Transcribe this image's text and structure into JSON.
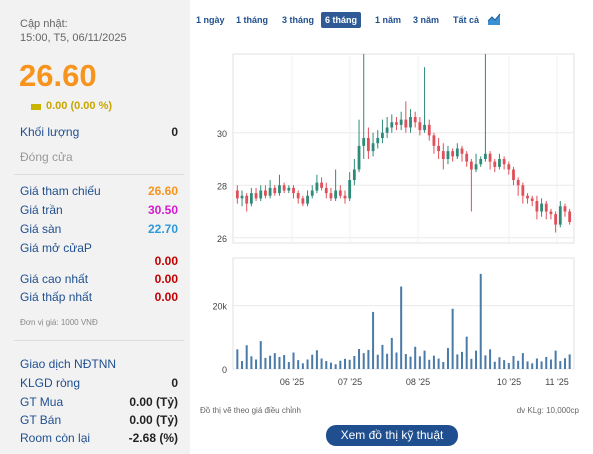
{
  "update": {
    "label": "Cập nhật:",
    "time": "15:00, T5, 06/11/2025"
  },
  "price": "26.60",
  "change": "0.00 (0.00 %)",
  "volume": {
    "label": "Khối lượng",
    "value": "0"
  },
  "status": "Đóng cửa",
  "prices": [
    {
      "label": "Giá tham chiếu",
      "value": "26.60",
      "color": "#f7941d"
    },
    {
      "label": "Giá trần",
      "value": "30.50",
      "color": "#d41ad0"
    },
    {
      "label": "Giá sàn",
      "value": "22.70",
      "color": "#2b9ad8"
    }
  ],
  "open": {
    "label": "Giá mở cửaP",
    "value": "0.00"
  },
  "high": {
    "label": "Giá cao nhất",
    "value": "0.00"
  },
  "low": {
    "label": "Giá thấp nhất",
    "value": "0.00"
  },
  "unit_note": "Đơn vị giá: 1000 VNĐ",
  "foreign": {
    "title": "Giao dịch NĐTNN",
    "rows": [
      {
        "label": "KLGD ròng",
        "value": "0"
      },
      {
        "label": "GT Mua",
        "value": "0.00 (Tỷ)"
      },
      {
        "label": "GT Bán",
        "value": "0.00 (Tỷ)"
      },
      {
        "label": "Room còn lại",
        "value": "-2.68 (%)"
      }
    ]
  },
  "tabs": [
    "1 ngày",
    "1 tháng",
    "3 tháng",
    "6 tháng",
    "1 năm",
    "3 năm",
    "Tất cả"
  ],
  "active_tab": "6 tháng",
  "icons": {
    "chart_type": "area-chart-icon",
    "change_indicator": "flat-bar-icon"
  },
  "colors": {
    "up": "#2e8b7a",
    "down": "#e0505a",
    "ref": "#f7941d",
    "volume": "#4a7aa8"
  },
  "chart_footer_left": "Đồ thị vẽ theo giá điều chỉnh",
  "chart_footer_right": "dv KLg: 10,000cp",
  "tech_button": "Xem đồ thị kỹ thuật",
  "chart_data": {
    "type": "candlestick",
    "y_ticks": [
      "30",
      "28",
      "26"
    ],
    "ylim": [
      25.8,
      33.0
    ],
    "volume_ticks": [
      "20k",
      "0"
    ],
    "volume_lim": [
      0,
      35000
    ],
    "x_ticks": [
      "06 '25",
      "07 '25",
      "08 '25",
      "10 '25",
      "11 '25"
    ],
    "candles": [
      [
        27.8,
        27.5,
        28.0,
        27.3
      ],
      [
        27.5,
        27.6,
        27.8,
        27.2
      ],
      [
        27.6,
        27.3,
        27.7,
        27.0
      ],
      [
        27.3,
        27.7,
        27.9,
        27.2
      ],
      [
        27.7,
        27.5,
        27.9,
        27.4
      ],
      [
        27.5,
        27.8,
        28.0,
        27.4
      ],
      [
        27.8,
        27.6,
        28.0,
        27.5
      ],
      [
        27.6,
        27.9,
        28.2,
        27.5
      ],
      [
        27.9,
        27.7,
        28.0,
        27.6
      ],
      [
        27.7,
        28.0,
        28.4,
        27.6
      ],
      [
        28.0,
        27.8,
        28.1,
        27.7
      ],
      [
        27.8,
        27.9,
        28.0,
        27.7
      ],
      [
        27.9,
        27.7,
        28.0,
        27.5
      ],
      [
        27.7,
        27.5,
        27.8,
        27.3
      ],
      [
        27.5,
        27.3,
        27.6,
        27.2
      ],
      [
        27.3,
        27.6,
        27.8,
        27.2
      ],
      [
        27.6,
        27.8,
        28.0,
        27.5
      ],
      [
        27.8,
        28.1,
        28.4,
        27.7
      ],
      [
        28.1,
        27.9,
        28.3,
        27.8
      ],
      [
        27.9,
        27.7,
        28.1,
        27.5
      ],
      [
        27.7,
        27.5,
        27.9,
        27.4
      ],
      [
        27.5,
        27.8,
        28.6,
        27.4
      ],
      [
        27.8,
        27.6,
        28.0,
        27.5
      ],
      [
        27.6,
        27.5,
        27.8,
        27.3
      ],
      [
        27.5,
        28.2,
        28.5,
        27.4
      ],
      [
        28.2,
        28.6,
        29.0,
        28.0
      ],
      [
        28.6,
        29.5,
        30.5,
        28.5
      ],
      [
        29.5,
        29.8,
        33.0,
        29.0
      ],
      [
        29.8,
        29.3,
        30.2,
        29.0
      ],
      [
        29.3,
        29.6,
        30.0,
        29.1
      ],
      [
        29.6,
        29.8,
        30.1,
        29.4
      ],
      [
        29.8,
        30.0,
        30.5,
        29.6
      ],
      [
        30.0,
        30.2,
        30.6,
        29.8
      ],
      [
        30.2,
        30.4,
        30.7,
        30.0
      ],
      [
        30.4,
        30.3,
        30.6,
        30.1
      ],
      [
        30.3,
        30.5,
        30.8,
        30.1
      ],
      [
        30.5,
        30.2,
        31.2,
        30.0
      ],
      [
        30.2,
        30.6,
        30.9,
        30.0
      ],
      [
        30.6,
        30.4,
        30.8,
        30.2
      ],
      [
        30.4,
        30.1,
        30.6,
        29.9
      ],
      [
        30.1,
        30.3,
        32.5,
        30.0
      ],
      [
        30.3,
        29.9,
        30.5,
        29.7
      ],
      [
        29.9,
        29.5,
        30.0,
        29.2
      ],
      [
        29.5,
        29.3,
        29.8,
        29.0
      ],
      [
        29.3,
        29.0,
        29.6,
        28.6
      ],
      [
        29.0,
        29.3,
        29.5,
        28.8
      ],
      [
        29.3,
        29.1,
        29.4,
        28.9
      ],
      [
        29.1,
        29.4,
        29.6,
        29.0
      ],
      [
        29.4,
        29.2,
        29.5,
        28.9
      ],
      [
        29.2,
        28.9,
        29.3,
        28.7
      ],
      [
        28.9,
        28.6,
        29.0,
        27.0
      ],
      [
        28.6,
        28.8,
        29.2,
        28.5
      ],
      [
        28.8,
        29.0,
        29.1,
        28.7
      ],
      [
        29.0,
        29.2,
        33.0,
        28.9
      ],
      [
        29.2,
        28.9,
        29.3,
        28.6
      ],
      [
        28.9,
        28.7,
        29.0,
        28.5
      ],
      [
        28.7,
        29.0,
        29.2,
        28.6
      ],
      [
        29.0,
        28.8,
        29.1,
        28.6
      ],
      [
        28.8,
        28.6,
        28.9,
        28.4
      ],
      [
        28.6,
        28.2,
        28.7,
        28.0
      ],
      [
        28.2,
        28.0,
        28.3,
        27.6
      ],
      [
        28.0,
        27.6,
        28.1,
        27.3
      ],
      [
        27.6,
        27.5,
        27.7,
        27.3
      ],
      [
        27.5,
        27.4,
        27.6,
        27.2
      ],
      [
        27.4,
        27.0,
        27.6,
        26.7
      ],
      [
        27.0,
        27.3,
        27.5,
        26.8
      ],
      [
        27.3,
        27.0,
        27.4,
        26.7
      ],
      [
        27.0,
        26.9,
        27.1,
        26.7
      ],
      [
        26.9,
        26.5,
        27.0,
        26.2
      ],
      [
        26.5,
        27.2,
        27.4,
        26.4
      ],
      [
        27.2,
        27.0,
        27.3,
        26.8
      ],
      [
        27.0,
        26.6,
        27.1,
        26.5
      ]
    ],
    "volumes": [
      6200,
      2500,
      7500,
      4000,
      3000,
      8800,
      3500,
      4200,
      5000,
      3800,
      4400,
      2200,
      5200,
      2800,
      1800,
      3000,
      4500,
      5900,
      3300,
      2500,
      2000,
      1500,
      2600,
      3200,
      2900,
      4100,
      6300,
      5000,
      6000,
      18000,
      4500,
      7600,
      4800,
      9800,
      5200,
      26000,
      4700,
      3900,
      7000,
      4000,
      5800,
      2900,
      4200,
      3300,
      2200,
      6600,
      19000,
      4600,
      5400,
      10200,
      3200,
      5800,
      30000,
      4300,
      6200,
      2300,
      3700,
      2800,
      1900,
      4100,
      2600,
      5000,
      2400,
      1800,
      3300,
      2400,
      3800,
      3000,
      5800,
      2500,
      3400,
      4600
    ]
  }
}
